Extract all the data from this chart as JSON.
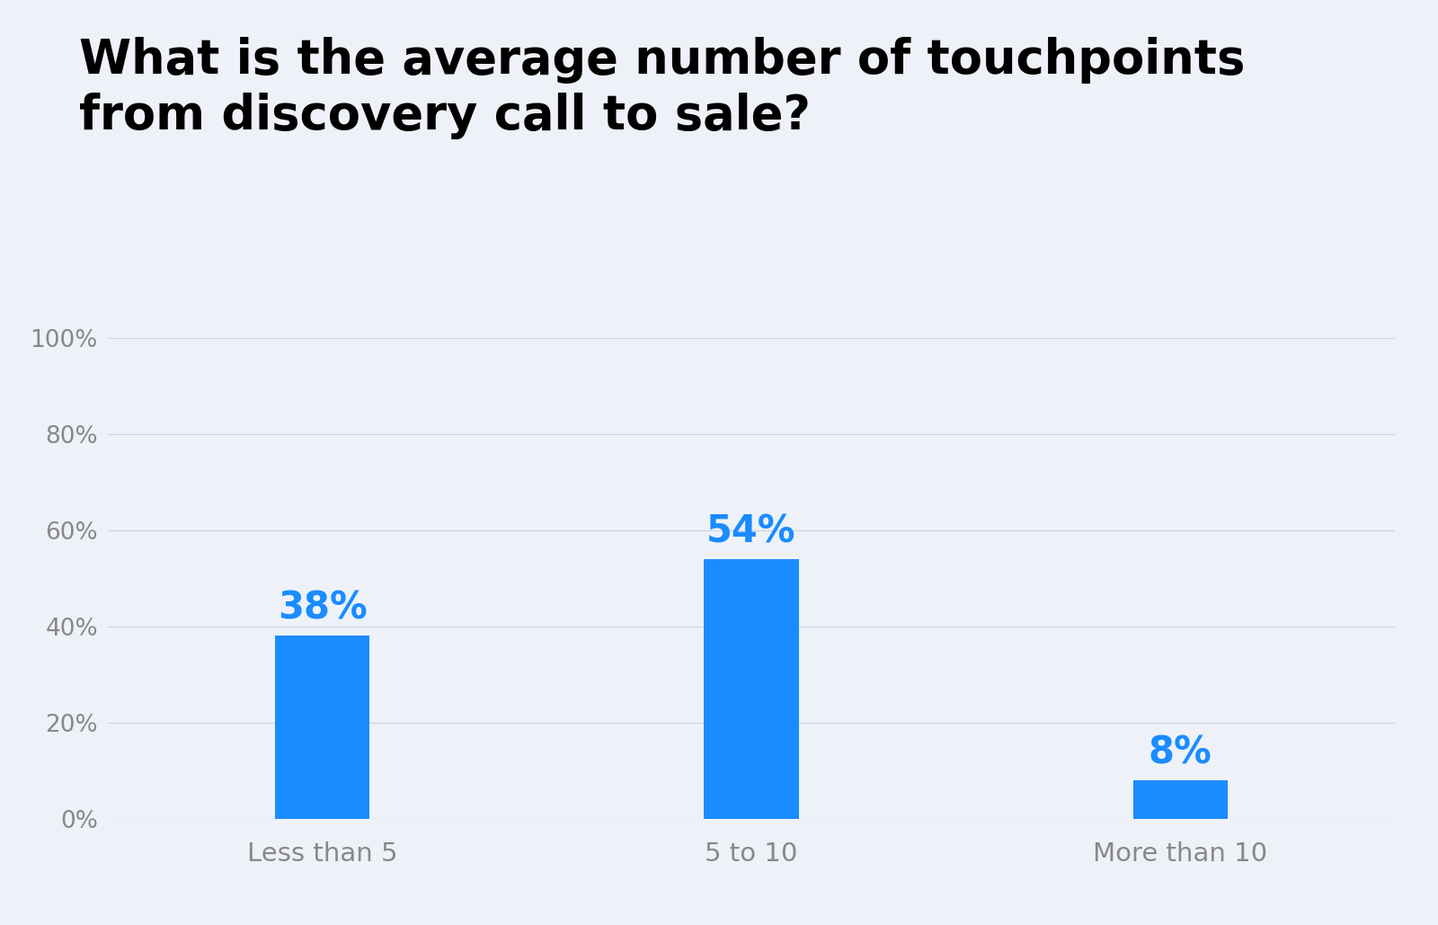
{
  "title_line1": "What is the average number of touchpoints",
  "title_line2": "from discovery call to sale?",
  "categories": [
    "Less than 5",
    "5 to 10",
    "More than 10"
  ],
  "values": [
    38,
    54,
    8
  ],
  "bar_color": "#1a8cff",
  "label_color": "#1a8cff",
  "tick_label_color": "#888888",
  "background_color": "#eef2f8",
  "title_color": "#000000",
  "ylim": [
    0,
    100
  ],
  "yticks": [
    0,
    20,
    40,
    60,
    80,
    100
  ],
  "ytick_labels": [
    "0%",
    "20%",
    "40%",
    "60%",
    "80%",
    "100%"
  ],
  "title_fontsize": 38,
  "label_fontsize": 30,
  "tick_fontsize": 19,
  "xtick_fontsize": 21,
  "bar_width": 0.22,
  "grid_color": "#d0d5de",
  "grid_linewidth": 0.9
}
